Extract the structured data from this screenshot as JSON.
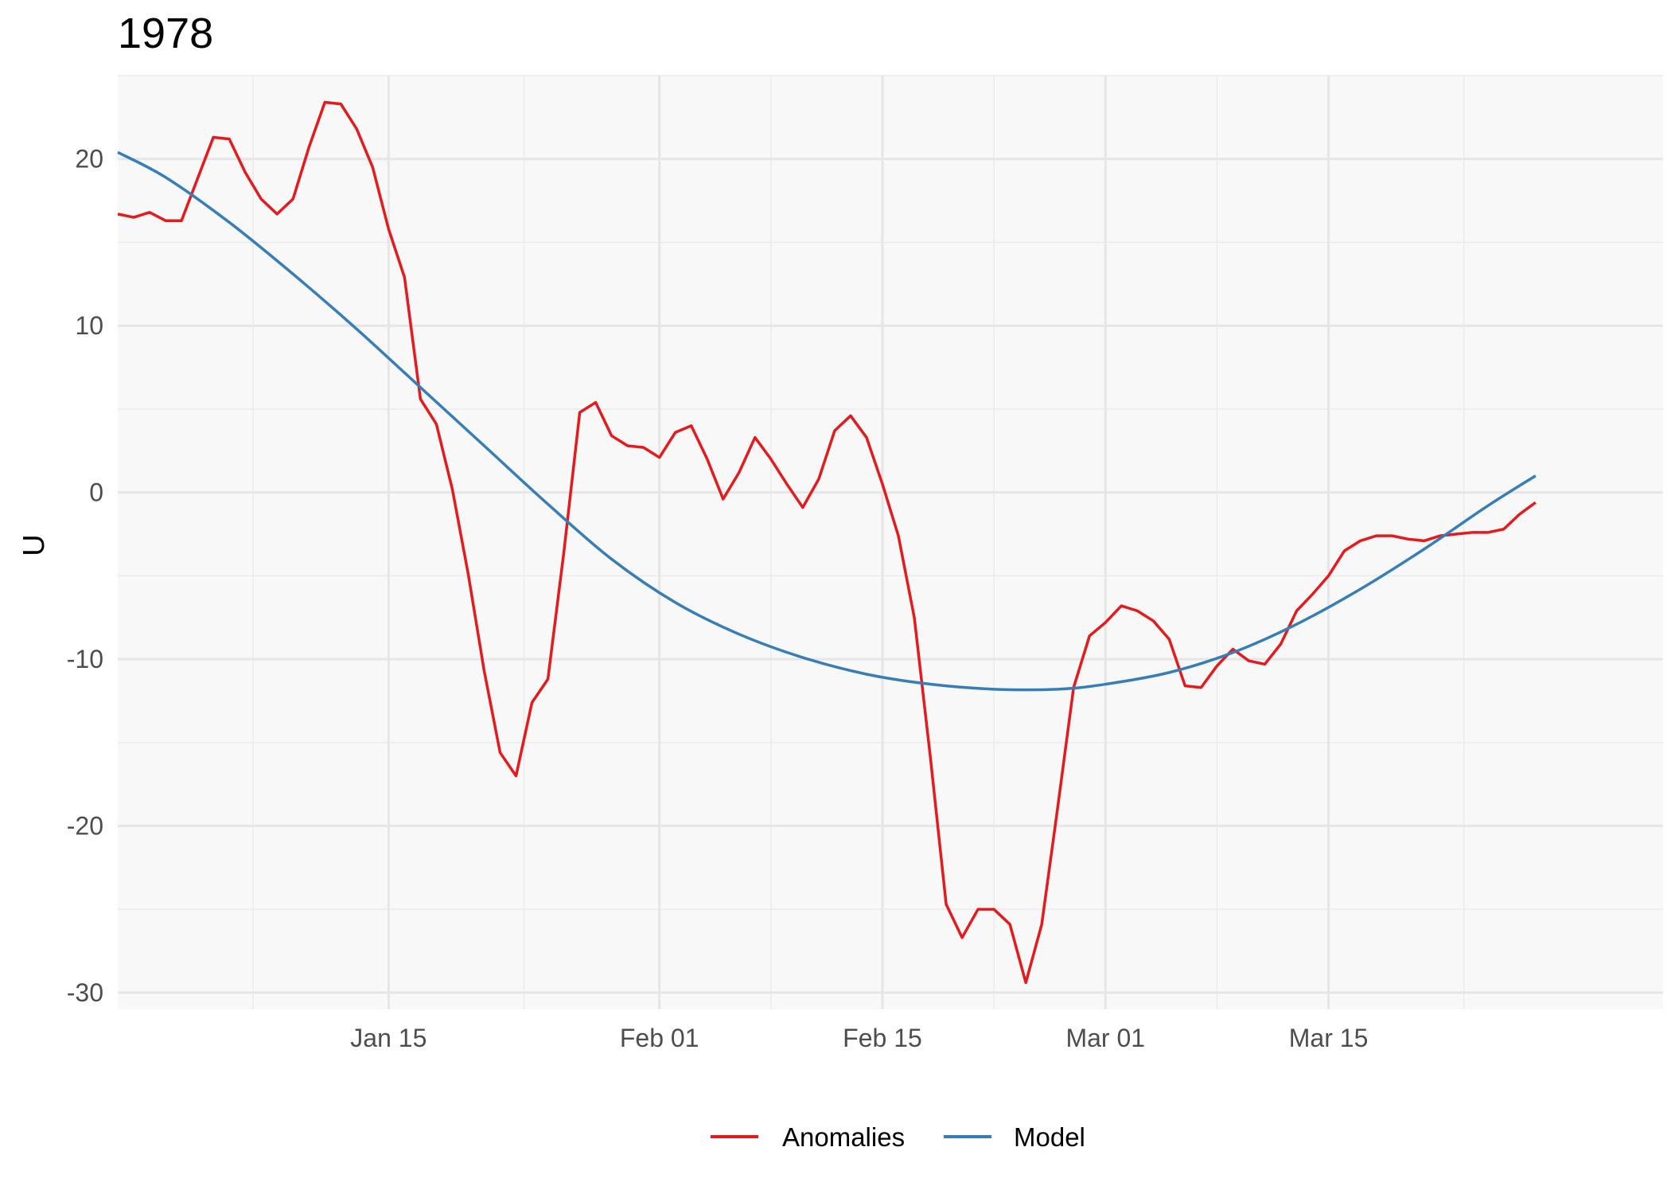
{
  "chart_data": {
    "type": "line",
    "title": "1978",
    "xlabel": "",
    "ylabel": "U",
    "x_axis_type": "date",
    "x_range": [
      "1977-12-29",
      "1978-04-05"
    ],
    "x_ticks": [
      {
        "date": "1978-01-15",
        "label": "Jan 15"
      },
      {
        "date": "1978-02-01",
        "label": "Feb 01"
      },
      {
        "date": "1978-02-15",
        "label": "Feb 15"
      },
      {
        "date": "1978-03-01",
        "label": "Mar 01"
      },
      {
        "date": "1978-03-15",
        "label": "Mar 15"
      }
    ],
    "ylim": [
      -31,
      25
    ],
    "y_ticks": [
      20,
      10,
      0,
      -10,
      -20,
      -30
    ],
    "y_tick_labels": [
      "20",
      "10",
      "0",
      "-10",
      "-20",
      "-30"
    ],
    "grid": true,
    "legend_position": "bottom",
    "series": [
      {
        "name": "Anomalies",
        "color": "#e41a1c",
        "points": [
          [
            "1977-12-29",
            16.7
          ],
          [
            "1977-12-30",
            16.5
          ],
          [
            "1977-12-31",
            16.8
          ],
          [
            "1978-01-01",
            16.3
          ],
          [
            "1978-01-02",
            16.3
          ],
          [
            "1978-01-03",
            18.8
          ],
          [
            "1978-01-04",
            21.3
          ],
          [
            "1978-01-05",
            21.2
          ],
          [
            "1978-01-06",
            19.2
          ],
          [
            "1978-01-07",
            17.6
          ],
          [
            "1978-01-08",
            16.7
          ],
          [
            "1978-01-09",
            17.6
          ],
          [
            "1978-01-10",
            20.7
          ],
          [
            "1978-01-11",
            23.4
          ],
          [
            "1978-01-12",
            23.3
          ],
          [
            "1978-01-13",
            21.8
          ],
          [
            "1978-01-14",
            19.5
          ],
          [
            "1978-01-15",
            15.8
          ],
          [
            "1978-01-16",
            12.9
          ],
          [
            "1978-01-17",
            5.6
          ],
          [
            "1978-01-18",
            4.1
          ],
          [
            "1978-01-19",
            0.2
          ],
          [
            "1978-01-20",
            -4.9
          ],
          [
            "1978-01-21",
            -10.7
          ],
          [
            "1978-01-22",
            -15.6
          ],
          [
            "1978-01-23",
            -17.0
          ],
          [
            "1978-01-24",
            -12.6
          ],
          [
            "1978-01-25",
            -11.2
          ],
          [
            "1978-01-26",
            -3.6
          ],
          [
            "1978-01-27",
            4.8
          ],
          [
            "1978-01-28",
            5.4
          ],
          [
            "1978-01-29",
            3.4
          ],
          [
            "1978-01-30",
            2.8
          ],
          [
            "1978-01-31",
            2.7
          ],
          [
            "1978-02-01",
            2.1
          ],
          [
            "1978-02-02",
            3.6
          ],
          [
            "1978-02-03",
            4.0
          ],
          [
            "1978-02-04",
            2.0
          ],
          [
            "1978-02-05",
            -0.4
          ],
          [
            "1978-02-06",
            1.2
          ],
          [
            "1978-02-07",
            3.3
          ],
          [
            "1978-02-08",
            2.0
          ],
          [
            "1978-02-09",
            0.5
          ],
          [
            "1978-02-10",
            -0.9
          ],
          [
            "1978-02-11",
            0.8
          ],
          [
            "1978-02-12",
            3.7
          ],
          [
            "1978-02-13",
            4.6
          ],
          [
            "1978-02-14",
            3.3
          ],
          [
            "1978-02-15",
            0.5
          ],
          [
            "1978-02-16",
            -2.6
          ],
          [
            "1978-02-17",
            -7.5
          ],
          [
            "1978-02-18",
            -15.8
          ],
          [
            "1978-02-19",
            -24.7
          ],
          [
            "1978-02-20",
            -26.7
          ],
          [
            "1978-02-21",
            -25.0
          ],
          [
            "1978-02-22",
            -25.0
          ],
          [
            "1978-02-23",
            -25.9
          ],
          [
            "1978-02-24",
            -29.4
          ],
          [
            "1978-02-25",
            -25.9
          ],
          [
            "1978-02-26",
            -18.9
          ],
          [
            "1978-02-27",
            -11.7
          ],
          [
            "1978-02-28",
            -8.6
          ],
          [
            "1978-03-01",
            -7.8
          ],
          [
            "1978-03-02",
            -6.8
          ],
          [
            "1978-03-03",
            -7.1
          ],
          [
            "1978-03-04",
            -7.7
          ],
          [
            "1978-03-05",
            -8.8
          ],
          [
            "1978-03-06",
            -11.6
          ],
          [
            "1978-03-07",
            -11.7
          ],
          [
            "1978-03-08",
            -10.4
          ],
          [
            "1978-03-09",
            -9.4
          ],
          [
            "1978-03-10",
            -10.1
          ],
          [
            "1978-03-11",
            -10.3
          ],
          [
            "1978-03-12",
            -9.1
          ],
          [
            "1978-03-13",
            -7.1
          ],
          [
            "1978-03-14",
            -6.1
          ],
          [
            "1978-03-15",
            -5.0
          ],
          [
            "1978-03-16",
            -3.5
          ],
          [
            "1978-03-17",
            -2.9
          ],
          [
            "1978-03-18",
            -2.6
          ],
          [
            "1978-03-19",
            -2.6
          ],
          [
            "1978-03-20",
            -2.8
          ],
          [
            "1978-03-21",
            -2.9
          ],
          [
            "1978-03-22",
            -2.6
          ],
          [
            "1978-03-23",
            -2.5
          ],
          [
            "1978-03-24",
            -2.4
          ],
          [
            "1978-03-25",
            -2.4
          ],
          [
            "1978-03-26",
            -2.2
          ],
          [
            "1978-03-27",
            -1.3
          ],
          [
            "1978-03-28",
            -0.6
          ]
        ]
      },
      {
        "name": "Model",
        "color": "#377eb8",
        "points": [
          [
            "1977-12-29",
            20.4
          ],
          [
            "1978-01-01",
            18.9
          ],
          [
            "1978-01-05",
            16.2
          ],
          [
            "1978-01-09",
            13.1
          ],
          [
            "1978-01-13",
            9.8
          ],
          [
            "1978-01-17",
            6.3
          ],
          [
            "1978-01-21",
            2.8
          ],
          [
            "1978-01-25",
            -0.7
          ],
          [
            "1978-01-29",
            -4.0
          ],
          [
            "1978-02-02",
            -6.6
          ],
          [
            "1978-02-06",
            -8.5
          ],
          [
            "1978-02-10",
            -9.9
          ],
          [
            "1978-02-14",
            -10.9
          ],
          [
            "1978-02-18",
            -11.5
          ],
          [
            "1978-02-22",
            -11.8
          ],
          [
            "1978-02-26",
            -11.8
          ],
          [
            "1978-03-01",
            -11.5
          ],
          [
            "1978-03-05",
            -10.8
          ],
          [
            "1978-03-09",
            -9.6
          ],
          [
            "1978-03-13",
            -7.9
          ],
          [
            "1978-03-17",
            -5.8
          ],
          [
            "1978-03-21",
            -3.4
          ],
          [
            "1978-03-25",
            -0.8
          ],
          [
            "1978-03-28",
            1.0
          ]
        ]
      }
    ]
  }
}
